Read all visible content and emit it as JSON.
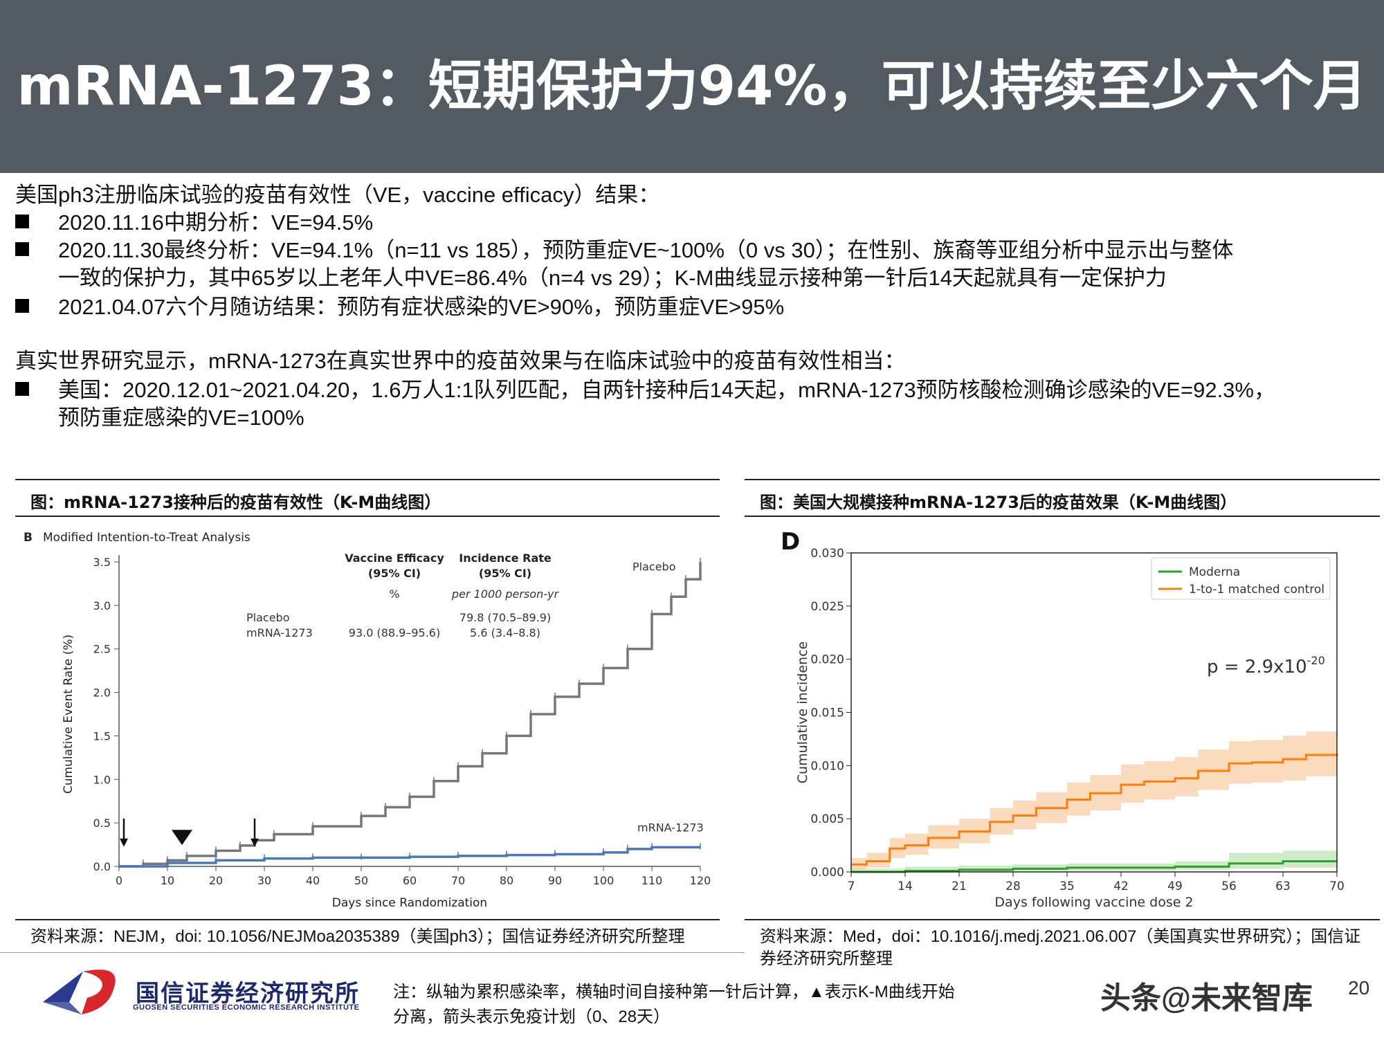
{
  "header": {
    "title": "mRNA-1273：短期保护力94%，可以持续至少六个月"
  },
  "intro": {
    "line1": "美国ph3注册临床试验的疫苗有效性（VE，vaccine efficacy）结果：",
    "bullets": [
      "2020.11.16中期分析：VE=94.5%",
      "2020.11.30最终分析：VE=94.1%（n=11 vs 185），预防重症VE~100%（0 vs 30）；在性别、族裔等亚组分析中显示出与整体",
      "一致的保护力，其中65岁以上老年人中VE=86.4%（n=4 vs 29）；K-M曲线显示接种第一针后14天起就具有一定保护力",
      "2021.04.07六个月随访结果：预防有症状感染的VE>90%，预防重症VE>95%"
    ]
  },
  "realworld": {
    "line1": "真实世界研究显示，mRNA-1273在真实世界中的疫苗效果与在临床试验中的疫苗有效性相当：",
    "bullet_line1": "美国：2020.12.01~2021.04.20，1.6万人1:1队列匹配，自两针接种后14天起，mRNA-1273预防核酸检测确诊感染的VE=92.3%，",
    "bullet_line2": "预防重症感染的VE=100%"
  },
  "panel_left": {
    "title": "图：mRNA-1273接种后的疫苗有效性（K-M曲线图）",
    "source": "资料来源：NEJM，doi: 10.1056/NEJMoa2035389（美国ph3）；国信证券经济研究所整理"
  },
  "panel_right": {
    "title": "图：美国大规模接种mRNA-1273后的疫苗效果（K-M曲线图）",
    "source": "资料来源：Med，doi：10.1016/j.medj.2021.06.007（美国真实世界研究）；国信证券经济研究所整理"
  },
  "note": {
    "line1": "注：纵轴为累积感染率，横轴时间自接种第一针后计算，▲表示K-M曲线开始",
    "line2": "分离，箭头表示免疫计划（0、28天）"
  },
  "footer": {
    "logo_cn": "国信证券经济研究所",
    "logo_en": "GUOSEN SECURITIES ECONOMIC RESEARCH INSTITUTE",
    "watermark": "头条@未来智库",
    "page": "20"
  },
  "chart_data": [
    {
      "type": "line",
      "panel_label": "B",
      "title": "Modified Intention-to-Treat Analysis",
      "xlabel": "Days since Randomization",
      "ylabel": "Cumulative Event Rate (%)",
      "xlim": [
        0,
        120
      ],
      "ylim": [
        0,
        3.5
      ],
      "xticks": [
        0,
        10,
        20,
        30,
        40,
        50,
        60,
        70,
        80,
        90,
        100,
        110,
        120
      ],
      "yticks": [
        0.0,
        0.5,
        1.0,
        1.5,
        2.0,
        2.5,
        3.0,
        3.5
      ],
      "table": {
        "header_ve": "Vaccine Efficacy",
        "header_ve2": "(95% CI)",
        "header_ve_unit": "%",
        "header_ir": "Incidence Rate",
        "header_ir2": "(95% CI)",
        "header_ir_unit": "per 1000 person-yr",
        "row_placebo": "Placebo",
        "row_mrna": "mRNA-1273",
        "ve_value": "93.0 (88.9–95.6)",
        "ir_placebo": "79.8 (70.5–89.9)",
        "ir_mrna": "5.6 (3.4–8.8)"
      },
      "series": [
        {
          "name": "Placebo",
          "color": "#777777",
          "x": [
            0,
            5,
            10,
            14,
            20,
            25,
            28,
            32,
            40,
            50,
            55,
            60,
            65,
            70,
            75,
            80,
            85,
            90,
            95,
            100,
            105,
            110,
            114,
            117,
            120
          ],
          "y": [
            0,
            0.03,
            0.07,
            0.12,
            0.18,
            0.24,
            0.3,
            0.37,
            0.46,
            0.58,
            0.68,
            0.8,
            0.98,
            1.15,
            1.3,
            1.5,
            1.75,
            1.95,
            2.1,
            2.28,
            2.5,
            2.9,
            3.1,
            3.3,
            3.5
          ]
        },
        {
          "name": "mRNA-1273",
          "color": "#4a78b5",
          "x": [
            0,
            10,
            20,
            30,
            40,
            50,
            60,
            70,
            80,
            90,
            100,
            105,
            110,
            120
          ],
          "y": [
            0,
            0.04,
            0.07,
            0.09,
            0.1,
            0.1,
            0.11,
            0.12,
            0.13,
            0.14,
            0.16,
            0.2,
            0.22,
            0.22
          ]
        }
      ],
      "annotations": [
        {
          "label": "Placebo",
          "x": 106,
          "y": 3.4
        },
        {
          "label": "mRNA-1273",
          "x": 107,
          "y": 0.4
        }
      ],
      "arrows_days": [
        1,
        28
      ],
      "triangle_day": 13
    },
    {
      "type": "line",
      "panel_label": "D",
      "xlabel": "Days following vaccine dose 2",
      "ylabel": "Cumulative incidence",
      "xlim": [
        7,
        70
      ],
      "ylim": [
        0,
        0.03
      ],
      "xticks": [
        7,
        14,
        21,
        28,
        35,
        42,
        49,
        56,
        63,
        70
      ],
      "yticks": [
        "0.000",
        "0.005",
        "0.010",
        "0.015",
        "0.020",
        "0.025",
        "0.030"
      ],
      "pvalue_base": "p = 2.9x10",
      "pvalue_exp": "-20",
      "legend_position": "top-right",
      "series": [
        {
          "name": "Moderna",
          "color": "#2ca02c",
          "band": "#c8e6c0",
          "x": [
            7,
            14,
            21,
            28,
            35,
            42,
            49,
            56,
            63,
            70
          ],
          "y": [
            0,
            0.0001,
            0.0002,
            0.0003,
            0.0004,
            0.0004,
            0.0005,
            0.0008,
            0.001,
            0.001
          ],
          "lo": [
            0,
            0,
            0,
            0.0001,
            0.0001,
            0.0001,
            0.0002,
            0.0003,
            0.0004,
            0.0004
          ],
          "hi": [
            0.0003,
            0.0005,
            0.0006,
            0.0007,
            0.0008,
            0.0008,
            0.001,
            0.0018,
            0.002,
            0.002
          ]
        },
        {
          "name": "1-to-1 matched control",
          "color": "#ff7f0e",
          "band": "#fcd3b3",
          "x": [
            7,
            9,
            12,
            14,
            17,
            21,
            25,
            28,
            31,
            35,
            38,
            42,
            45,
            49,
            52,
            56,
            59,
            63,
            66,
            70
          ],
          "y": [
            0.0007,
            0.001,
            0.0022,
            0.0025,
            0.0032,
            0.0038,
            0.0047,
            0.0053,
            0.006,
            0.0068,
            0.0074,
            0.0082,
            0.0085,
            0.0088,
            0.0095,
            0.0102,
            0.0103,
            0.0106,
            0.011,
            0.0111
          ],
          "lo": [
            0.0002,
            0.0004,
            0.0013,
            0.0016,
            0.0022,
            0.0027,
            0.0035,
            0.004,
            0.0046,
            0.0053,
            0.0058,
            0.0065,
            0.0068,
            0.0071,
            0.0077,
            0.0083,
            0.0084,
            0.0086,
            0.009,
            0.0091
          ],
          "hi": [
            0.0013,
            0.0018,
            0.0032,
            0.0036,
            0.0044,
            0.005,
            0.006,
            0.0067,
            0.0075,
            0.0084,
            0.0091,
            0.0101,
            0.0104,
            0.0108,
            0.0115,
            0.0123,
            0.0124,
            0.0128,
            0.0132,
            0.0138
          ]
        }
      ]
    }
  ]
}
